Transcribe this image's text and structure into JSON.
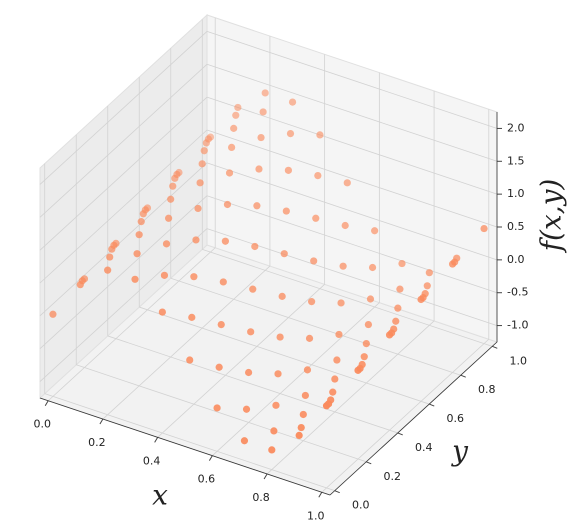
{
  "chart_data": {
    "type": "scatter3d",
    "color": "#fa8a5c",
    "xlabel": "x",
    "ylabel": "y",
    "zlabel": "f(x,y)",
    "xlim": [
      -0.03,
      1.03
    ],
    "ylim": [
      -0.03,
      1.03
    ],
    "zlim": [
      -1.25,
      2.25
    ],
    "xticks": [
      {
        "value": 0,
        "label": "0.0"
      },
      0.2,
      0.4,
      0.6,
      0.8,
      {
        "value": 1,
        "label": "1.0"
      }
    ],
    "yticks": [
      {
        "value": 0,
        "label": "0.0"
      },
      0.2,
      0.4,
      0.6,
      0.8,
      {
        "value": 1,
        "label": "1.0"
      }
    ],
    "zticks": [
      {
        "value": -1,
        "label": "-1.0"
      },
      -0.5,
      {
        "value": 0,
        "label": "0.0"
      },
      0.5,
      {
        "value": 1,
        "label": "1.0"
      },
      1.5,
      {
        "value": 2,
        "label": "2.0"
      }
    ],
    "grid": true,
    "x": [
      0.05,
      0.05,
      0.05,
      0.05,
      0.05,
      0.15,
      0.15,
      0.15,
      0.15,
      0.15,
      0.25,
      0.25,
      0.25,
      0.25,
      0.25,
      0.35,
      0.35,
      0.35,
      0.35,
      0.35,
      0.45,
      0.45,
      0.45,
      0.45,
      0.45,
      0.55,
      0.55,
      0.55,
      0.55,
      0.55,
      0.65,
      0.65,
      0.65,
      0.65,
      0.65,
      0.75,
      0.75,
      0.75,
      0.75,
      0.75,
      0.85,
      0.85,
      0.85,
      0.85,
      0.85,
      0.95,
      0.95,
      0.95,
      0.95,
      0.95,
      0,
      0,
      0,
      0,
      0,
      0,
      0.1,
      0.1,
      0.1,
      0.1,
      0.1,
      0.1,
      0.2,
      0.2,
      0.2,
      0.2,
      0.2,
      0.2,
      0.3,
      0.3,
      0.3,
      0.3,
      0.3,
      0.3,
      0.4,
      0.4,
      0.4,
      0.4,
      0.4,
      0.4,
      0.5,
      0.5,
      0.5,
      0.5,
      0.5,
      0.5,
      0.6,
      0.6,
      0.6,
      0.6,
      0.6,
      0.6,
      0.7,
      0.7,
      0.7,
      0.7,
      0.7,
      0.7,
      0.8,
      0.8,
      0.8,
      0.8,
      0.8,
      0.8,
      0.9,
      0.9,
      0.9,
      0.9,
      0.9,
      0.9,
      1,
      1,
      1,
      1,
      1,
      1
    ],
    "y": [
      0.1,
      0.3,
      0.5,
      0.7,
      0.9,
      0.1,
      0.3,
      0.5,
      0.7,
      0.9,
      0.1,
      0.3,
      0.5,
      0.7,
      0.9,
      0.1,
      0.3,
      0.5,
      0.7,
      0.9,
      0.1,
      0.3,
      0.5,
      0.7,
      0.9,
      0.1,
      0.3,
      0.5,
      0.7,
      0.9,
      0.1,
      0.3,
      0.5,
      0.7,
      0.9,
      0.1,
      0.3,
      0.5,
      0.7,
      0.9,
      0.1,
      0.3,
      0.5,
      0.7,
      0.9,
      0.1,
      0.3,
      0.5,
      0.7,
      0.9,
      0,
      0.2,
      0.4,
      0.6,
      0.8,
      1,
      0,
      0.2,
      0.4,
      0.6,
      0.8,
      1,
      0,
      0.2,
      0.4,
      0.6,
      0.8,
      1,
      0,
      0.2,
      0.4,
      0.6,
      0.8,
      1,
      0,
      0.2,
      0.4,
      0.6,
      0.8,
      1,
      0,
      0.2,
      0.4,
      0.6,
      0.8,
      1,
      0,
      0.2,
      0.4,
      0.6,
      0.8,
      1,
      0,
      0.2,
      0.4,
      0.6,
      0.8,
      1,
      0,
      0.2,
      0.4,
      0.6,
      0.8,
      1,
      0,
      0.2,
      0.4,
      0.6,
      0.8,
      1,
      0,
      0.2,
      0.4,
      0.6,
      0.8,
      1
    ],
    "z": [
      0.36,
      0.46,
      0.56,
      0.66,
      0.76,
      0.86,
      0.96,
      1.06,
      1.16,
      1.26,
      1.05,
      1.15,
      1.25,
      1.35,
      1.45,
      0.86,
      0.96,
      1.06,
      1.16,
      1.26,
      0.36,
      0.46,
      0.56,
      0.66,
      0.76,
      -0.26,
      -0.16,
      -0.06,
      0.04,
      0.14,
      -0.76,
      -0.66,
      -0.56,
      -0.46,
      -0.36,
      -0.95,
      -0.85,
      -0.75,
      -0.65,
      -0.55,
      -0.76,
      -0.66,
      -0.56,
      -0.46,
      -0.36,
      -0.26,
      -0.16,
      -0.06,
      0.04,
      0.14,
      0,
      0.1,
      0.2,
      0.3,
      0.4,
      0.5,
      0.59,
      0.69,
      0.79,
      0.89,
      0.99,
      1.09,
      0.95,
      1.05,
      1.15,
      1.25,
      1.35,
      1.45,
      0.95,
      1.05,
      1.15,
      1.25,
      1.35,
      1.45,
      0.59,
      0.69,
      0.79,
      0.89,
      0.99,
      1.09,
      0,
      0.1,
      0.2,
      0.3,
      0.4,
      0.5,
      -0.59,
      -0.49,
      -0.39,
      -0.29,
      -0.19,
      -0.09,
      -0.95,
      -0.85,
      -0.75,
      -0.65,
      -0.55,
      -0.45,
      -0.95,
      -0.85,
      -0.75,
      -0.65,
      -0.55,
      -0.45,
      -0.59,
      -0.49,
      -0.39,
      -0.29,
      -0.19,
      -0.09,
      0,
      0.1,
      0.2,
      0.3,
      0.4,
      0.5
    ]
  }
}
